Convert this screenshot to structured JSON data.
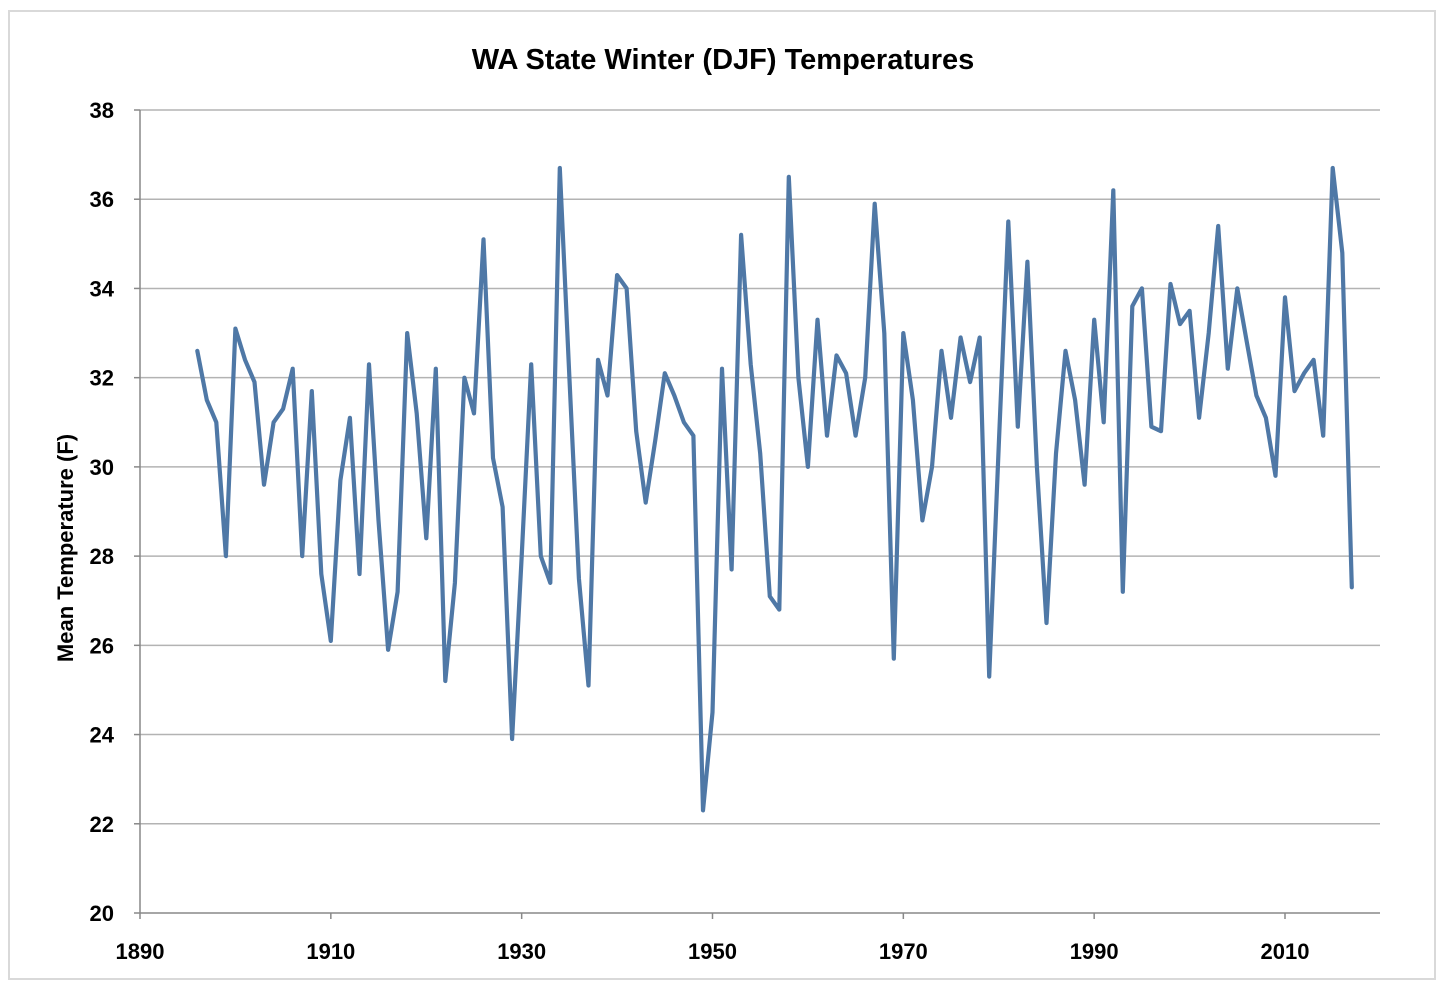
{
  "chart_data": {
    "type": "line",
    "title": "WA State Winter (DJF) Temperatures",
    "xlabel": "",
    "ylabel": "Mean Temperature (F)",
    "xlim": [
      1890,
      2020
    ],
    "ylim": [
      20,
      38
    ],
    "xticks": [
      1890,
      1910,
      1930,
      1950,
      1970,
      1990,
      2010
    ],
    "yticks": [
      20,
      22,
      24,
      26,
      28,
      30,
      32,
      34,
      36,
      38
    ],
    "grid": "horizontal",
    "legend": "none",
    "series": [
      {
        "name": "DJF Mean Temperature",
        "color": "#4f78a6",
        "x_start": 1896,
        "values": [
          32.6,
          31.5,
          31.0,
          28.0,
          33.1,
          32.4,
          31.9,
          29.6,
          31.0,
          31.3,
          32.2,
          28.0,
          31.7,
          27.6,
          26.1,
          29.7,
          31.1,
          27.6,
          32.3,
          28.8,
          25.9,
          27.2,
          33.0,
          31.2,
          28.4,
          32.2,
          25.2,
          27.4,
          32.0,
          31.2,
          35.1,
          30.2,
          29.1,
          23.9,
          28.0,
          32.3,
          28.0,
          27.4,
          36.7,
          32.0,
          27.5,
          25.1,
          32.4,
          31.6,
          34.3,
          34.0,
          30.8,
          29.2,
          30.6,
          32.1,
          31.6,
          31.0,
          30.7,
          22.3,
          24.5,
          32.2,
          27.7,
          35.2,
          32.3,
          30.3,
          27.1,
          26.8,
          36.5,
          32.0,
          30.0,
          33.3,
          30.7,
          32.5,
          32.1,
          30.7,
          32.0,
          35.9,
          33.0,
          25.7,
          33.0,
          31.5,
          28.8,
          30.0,
          32.6,
          31.1,
          32.9,
          31.9,
          32.9,
          25.3,
          30.5,
          35.5,
          30.9,
          34.6,
          30.0,
          26.5,
          30.3,
          32.6,
          31.5,
          29.6,
          33.3,
          31.0,
          36.2,
          27.2,
          33.6,
          34.0,
          30.9,
          30.8,
          34.1,
          33.2,
          33.5,
          31.1,
          33.0,
          35.4,
          32.2,
          34.0,
          32.8,
          31.6,
          31.1,
          29.8,
          33.8,
          31.7,
          32.1,
          32.4,
          30.7,
          36.7,
          34.8,
          27.3
        ]
      }
    ]
  }
}
